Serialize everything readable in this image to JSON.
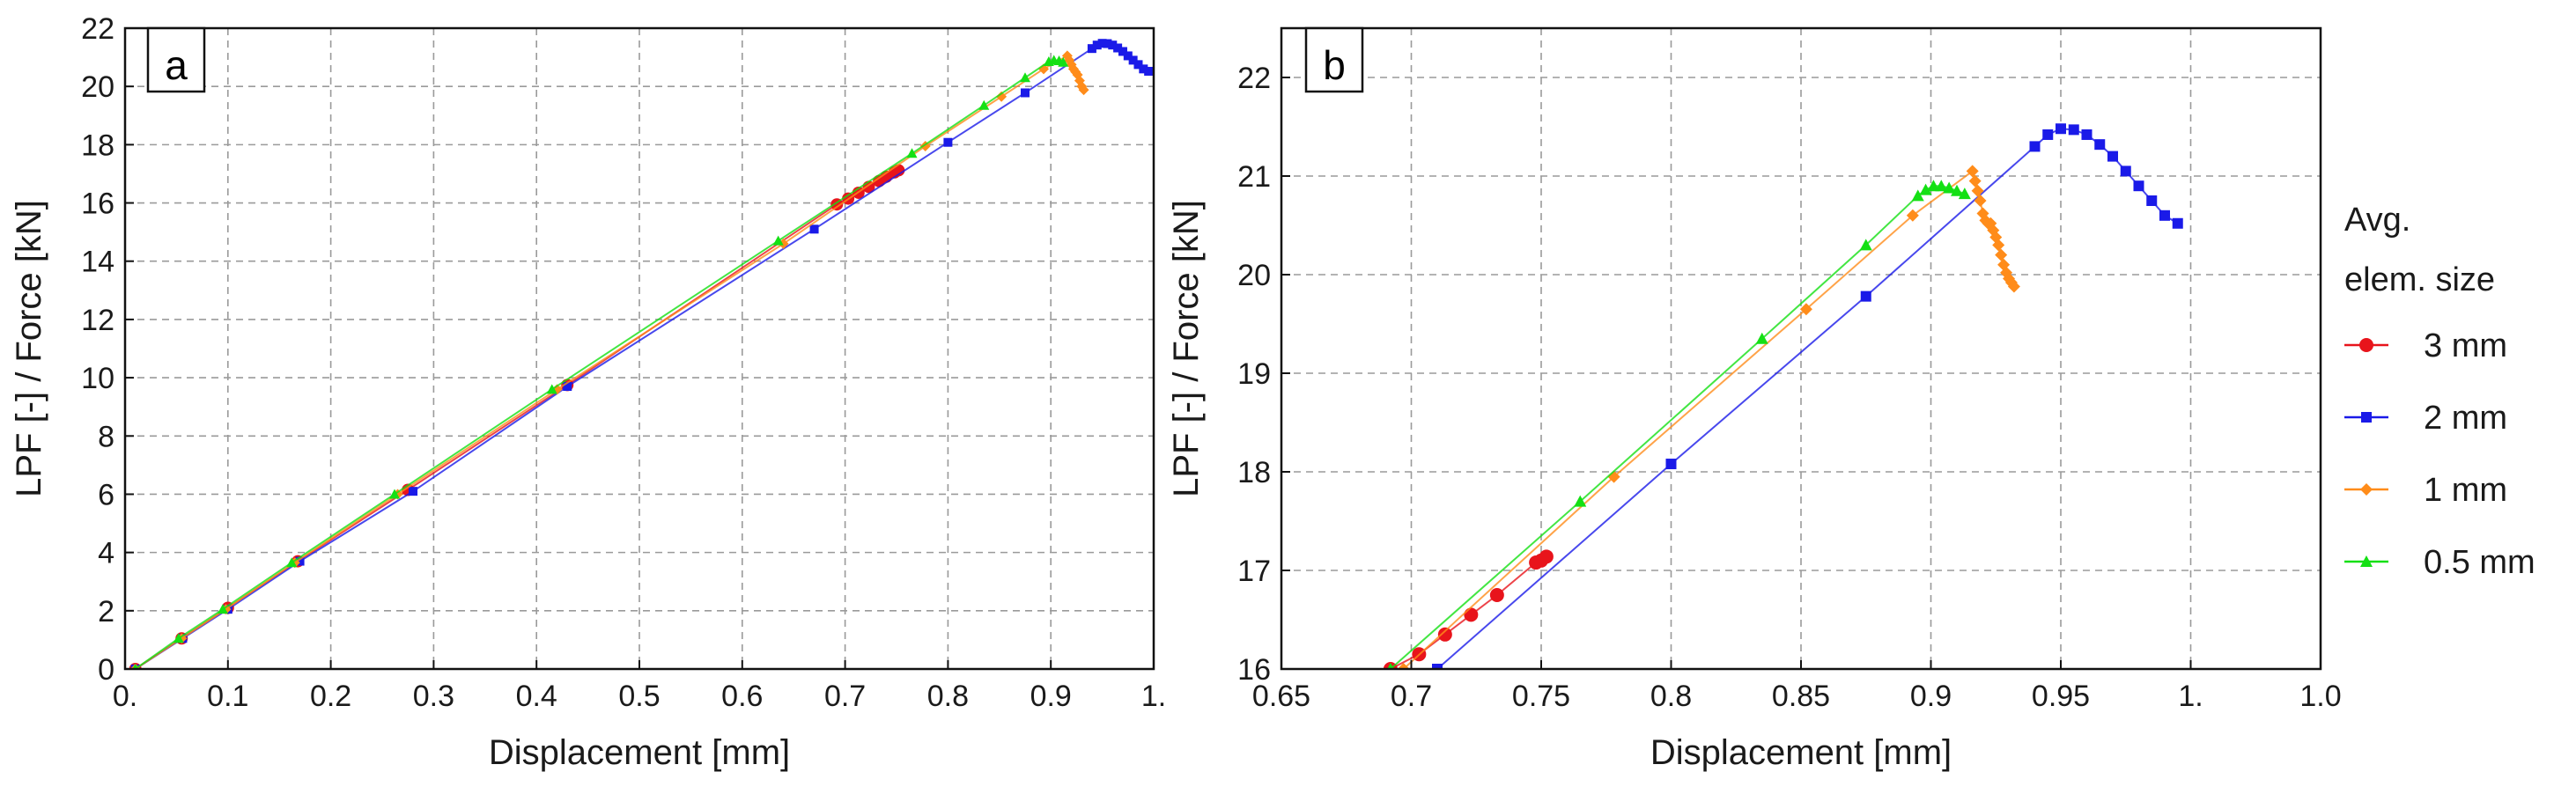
{
  "colors": {
    "3 mm": "#e8141b",
    "2 mm": "#1a1ae8",
    "1 mm": "#ff8c1a",
    "0.5 mm": "#14e014"
  },
  "legend": {
    "title_line1": "Avg.",
    "title_line2": "elem. size",
    "placement": "right",
    "entries": [
      "3 mm",
      "2 mm",
      "1 mm",
      "0.5 mm"
    ]
  },
  "chart_data": [
    {
      "panel": "a",
      "type": "line",
      "xlabel": "Displacement [mm]",
      "ylabel": "LPF [-] / Force [kN]",
      "xlim": [
        0,
        1.0
      ],
      "ylim": [
        0,
        22
      ],
      "xticks": [
        0,
        0.1,
        0.2,
        0.3,
        0.4,
        0.5,
        0.6,
        0.7,
        0.8,
        0.9,
        1.0
      ],
      "xtick_labels": [
        "0.",
        "0.1",
        "0.2",
        "0.3",
        "0.4",
        "0.5",
        "0.6",
        "0.7",
        "0.8",
        "0.9",
        "1."
      ],
      "yticks": [
        0,
        2,
        4,
        6,
        8,
        10,
        12,
        14,
        16,
        18,
        20,
        22
      ],
      "ytick_labels": [
        "0",
        "2",
        "4",
        "6",
        "8",
        "10",
        "12",
        "14",
        "16",
        "18",
        "20",
        "22"
      ],
      "grid": true,
      "series": [
        {
          "name": "3 mm",
          "marker": "circle",
          "x": [
            0.01,
            0.055,
            0.1,
            0.168,
            0.275,
            0.43,
            0.692,
            0.703,
            0.713,
            0.723,
            0.733,
            0.74,
            0.748,
            0.752
          ],
          "y": [
            0.0,
            1.05,
            2.1,
            3.7,
            6.15,
            9.75,
            15.95,
            16.15,
            16.35,
            16.55,
            16.75,
            16.9,
            17.05,
            17.12
          ]
        },
        {
          "name": "2 mm",
          "marker": "square",
          "x": [
            0.01,
            0.056,
            0.1,
            0.17,
            0.28,
            0.43,
            0.67,
            0.8,
            0.875,
            0.94,
            0.945,
            0.95,
            0.955,
            0.96,
            0.965,
            0.97,
            0.975,
            0.98,
            0.985,
            0.99,
            0.995
          ],
          "y": [
            0.0,
            1.05,
            2.05,
            3.7,
            6.1,
            9.7,
            15.1,
            18.08,
            19.78,
            21.3,
            21.42,
            21.48,
            21.47,
            21.42,
            21.32,
            21.2,
            21.05,
            20.9,
            20.75,
            20.6,
            20.52
          ]
        },
        {
          "name": "1 mm",
          "marker": "diamond",
          "x": [
            0.01,
            0.055,
            0.098,
            0.165,
            0.265,
            0.42,
            0.64,
            0.778,
            0.852,
            0.893,
            0.916,
            0.918,
            0.92,
            0.922,
            0.924,
            0.926,
            0.928,
            0.93,
            0.932
          ],
          "y": [
            0.0,
            1.05,
            2.05,
            3.65,
            6.0,
            9.6,
            14.6,
            17.95,
            19.65,
            20.6,
            21.05,
            20.9,
            20.75,
            20.6,
            20.5,
            20.4,
            20.2,
            20.0,
            19.88
          ]
        },
        {
          "name": "0.5 mm",
          "marker": "triangle",
          "x": [
            0.01,
            0.052,
            0.095,
            0.162,
            0.262,
            0.415,
            0.635,
            0.765,
            0.835,
            0.875,
            0.898,
            0.903,
            0.908,
            0.912
          ],
          "y": [
            0.0,
            1.05,
            2.05,
            3.65,
            6.0,
            9.6,
            14.7,
            17.7,
            19.35,
            20.3,
            20.85,
            20.9,
            20.88,
            20.83
          ]
        }
      ]
    },
    {
      "panel": "b",
      "type": "line",
      "xlabel": "Displacement [mm]",
      "ylabel": "LPF [-] / Force [kN]",
      "xlim": [
        0.65,
        1.05
      ],
      "ylim": [
        16,
        22.5
      ],
      "xticks": [
        0.65,
        0.7,
        0.75,
        0.8,
        0.85,
        0.9,
        0.95,
        1.0,
        1.05
      ],
      "xtick_labels": [
        "0.65",
        "0.7",
        "0.75",
        "0.8",
        "0.85",
        "0.9",
        "0.95",
        "1.",
        "1.0"
      ],
      "yticks": [
        16,
        17,
        18,
        19,
        20,
        21,
        22
      ],
      "ytick_labels": [
        "16",
        "17",
        "18",
        "19",
        "20",
        "21",
        "22"
      ],
      "grid": true,
      "series": [
        {
          "name": "3 mm",
          "marker": "circle",
          "x": [
            0.692,
            0.703,
            0.713,
            0.723,
            0.733,
            0.748,
            0.75,
            0.752
          ],
          "y": [
            16.0,
            16.15,
            16.35,
            16.55,
            16.75,
            17.08,
            17.1,
            17.14
          ]
        },
        {
          "name": "2 mm",
          "marker": "square",
          "x": [
            0.71,
            0.8,
            0.875,
            0.94,
            0.945,
            0.95,
            0.955,
            0.96,
            0.965,
            0.97,
            0.975,
            0.98,
            0.985,
            0.99,
            0.995
          ],
          "y": [
            16.0,
            18.08,
            19.78,
            21.3,
            21.42,
            21.48,
            21.47,
            21.42,
            21.32,
            21.2,
            21.05,
            20.9,
            20.75,
            20.6,
            20.52
          ]
        },
        {
          "name": "1 mm",
          "marker": "diamond",
          "x": [
            0.697,
            0.778,
            0.852,
            0.893,
            0.916,
            0.917,
            0.918,
            0.919,
            0.92,
            0.921,
            0.922,
            0.923,
            0.924,
            0.925,
            0.926,
            0.927,
            0.928,
            0.929,
            0.93,
            0.931,
            0.932
          ],
          "y": [
            16.0,
            17.95,
            19.65,
            20.6,
            21.05,
            20.95,
            20.85,
            20.75,
            20.62,
            20.55,
            20.52,
            20.52,
            20.45,
            20.38,
            20.3,
            20.2,
            20.1,
            20.02,
            19.96,
            19.92,
            19.88
          ]
        },
        {
          "name": "0.5 mm",
          "marker": "triangle",
          "x": [
            0.692,
            0.765,
            0.835,
            0.875,
            0.895,
            0.898,
            0.901,
            0.904,
            0.907,
            0.91,
            0.913
          ],
          "y": [
            16.0,
            17.7,
            19.35,
            20.3,
            20.8,
            20.86,
            20.9,
            20.9,
            20.88,
            20.85,
            20.82
          ]
        }
      ]
    }
  ]
}
